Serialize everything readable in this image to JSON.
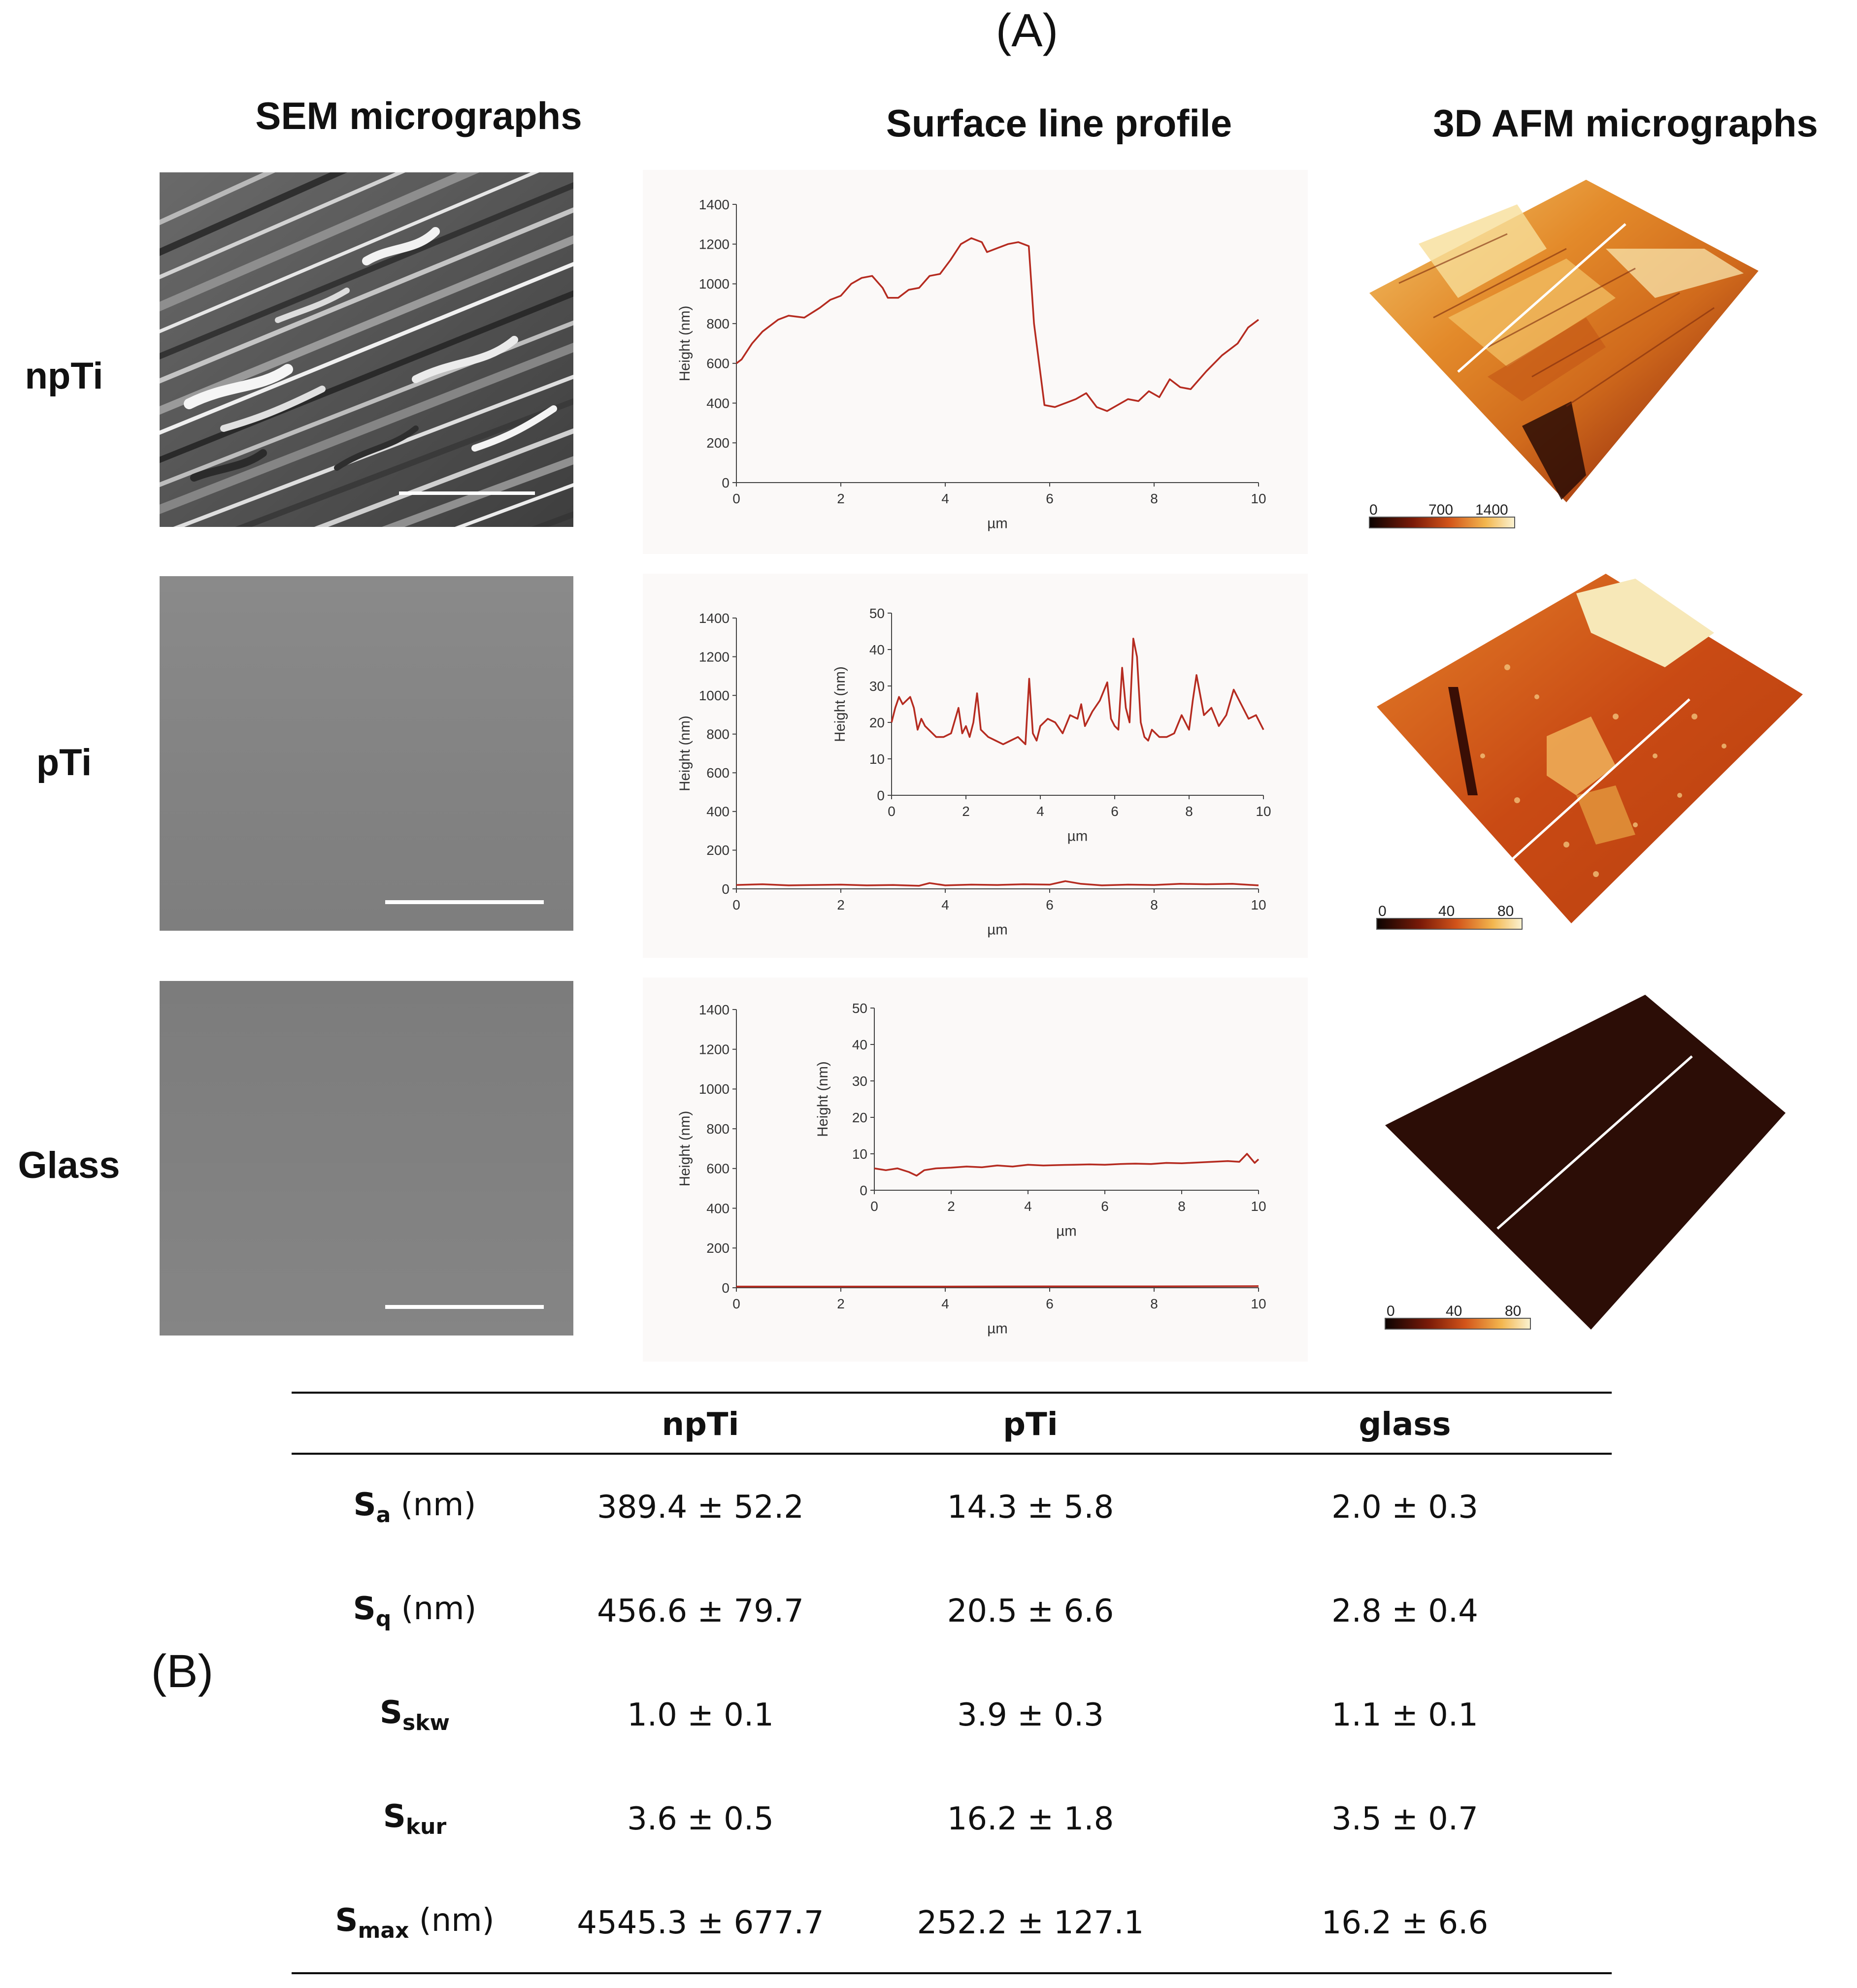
{
  "panel_a_label": "(A)",
  "panel_b_label": "(B)",
  "columns": {
    "sem": "SEM micrographs",
    "profile": "Surface line profile",
    "afm": "3D AFM micrographs"
  },
  "rows": {
    "npTi": "npTi",
    "pTi": "pTi",
    "glass": "Glass"
  },
  "colors": {
    "line": "#b52b20",
    "afm_dark": "#2a0c05",
    "afm_mid": "#c94a14",
    "afm_light": "#f7df9a"
  },
  "colorbars": [
    {
      "labels": [
        "0",
        "700",
        "1400"
      ]
    },
    {
      "labels": [
        "0",
        "40",
        "80"
      ]
    },
    {
      "labels": [
        "0",
        "40",
        "80"
      ]
    }
  ],
  "chart_data": [
    {
      "type": "line",
      "id": "npTi-main",
      "xlabel": "µm",
      "ylabel": "Height (nm)",
      "xlim": [
        0,
        10
      ],
      "ylim": [
        0,
        1400
      ],
      "xticks": [
        "0",
        "2",
        "4",
        "6",
        "8",
        "10"
      ],
      "yticks": [
        "0",
        "200",
        "400",
        "600",
        "800",
        "1000",
        "1200",
        "1400"
      ],
      "x": [
        0,
        0.1,
        0.3,
        0.5,
        0.8,
        1.0,
        1.3,
        1.6,
        1.8,
        2.0,
        2.2,
        2.4,
        2.6,
        2.8,
        2.9,
        3.1,
        3.3,
        3.5,
        3.7,
        3.9,
        4.1,
        4.3,
        4.5,
        4.7,
        4.8,
        5.0,
        5.2,
        5.4,
        5.6,
        5.7,
        5.9,
        6.1,
        6.3,
        6.5,
        6.7,
        6.9,
        7.1,
        7.3,
        7.5,
        7.7,
        7.9,
        8.1,
        8.3,
        8.5,
        8.7,
        9.0,
        9.3,
        9.6,
        9.8,
        10.0
      ],
      "y": [
        600,
        620,
        700,
        760,
        820,
        840,
        830,
        880,
        920,
        940,
        1000,
        1030,
        1040,
        980,
        930,
        930,
        970,
        980,
        1040,
        1050,
        1120,
        1200,
        1230,
        1210,
        1160,
        1180,
        1200,
        1210,
        1190,
        800,
        390,
        380,
        400,
        420,
        450,
        380,
        360,
        390,
        420,
        410,
        460,
        430,
        520,
        480,
        470,
        560,
        640,
        700,
        780,
        820
      ]
    },
    {
      "type": "line",
      "id": "pTi-main",
      "xlabel": "µm",
      "ylabel": "Height (nm)",
      "xlim": [
        0,
        10
      ],
      "ylim": [
        0,
        1400
      ],
      "xticks": [
        "0",
        "2",
        "4",
        "6",
        "8",
        "10"
      ],
      "yticks": [
        "0",
        "200",
        "400",
        "600",
        "800",
        "1000",
        "1200",
        "1400"
      ],
      "x": [
        0,
        0.5,
        1.0,
        1.5,
        2.0,
        2.5,
        3.0,
        3.5,
        3.7,
        4.0,
        4.5,
        5.0,
        5.5,
        6.0,
        6.3,
        6.6,
        7.0,
        7.5,
        8.0,
        8.5,
        9.0,
        9.5,
        10.0
      ],
      "y": [
        20,
        24,
        18,
        20,
        22,
        18,
        20,
        16,
        30,
        18,
        22,
        20,
        24,
        22,
        40,
        26,
        18,
        22,
        20,
        26,
        24,
        26,
        18
      ]
    },
    {
      "type": "line",
      "id": "pTi-inset",
      "xlabel": "µm",
      "ylabel": "Height (nm)",
      "xlim": [
        0,
        10
      ],
      "ylim": [
        0,
        50
      ],
      "xticks": [
        "0",
        "2",
        "4",
        "6",
        "8",
        "10"
      ],
      "yticks": [
        "0",
        "10",
        "20",
        "30",
        "40",
        "50"
      ],
      "x": [
        0,
        0.1,
        0.2,
        0.3,
        0.4,
        0.5,
        0.6,
        0.7,
        0.8,
        0.9,
        1.0,
        1.2,
        1.4,
        1.6,
        1.8,
        1.9,
        2.0,
        2.1,
        2.2,
        2.3,
        2.4,
        2.6,
        2.8,
        3.0,
        3.2,
        3.4,
        3.6,
        3.7,
        3.8,
        3.9,
        4.0,
        4.2,
        4.4,
        4.6,
        4.8,
        5.0,
        5.1,
        5.2,
        5.4,
        5.6,
        5.8,
        5.9,
        6.0,
        6.1,
        6.2,
        6.3,
        6.4,
        6.5,
        6.6,
        6.7,
        6.8,
        6.9,
        7.0,
        7.2,
        7.4,
        7.6,
        7.8,
        8.0,
        8.1,
        8.2,
        8.4,
        8.6,
        8.8,
        9.0,
        9.2,
        9.4,
        9.6,
        9.8,
        10.0
      ],
      "y": [
        20,
        24,
        27,
        25,
        26,
        27,
        24,
        18,
        21,
        19,
        18,
        16,
        16,
        17,
        24,
        17,
        19,
        16,
        20,
        28,
        18,
        16,
        15,
        14,
        15,
        16,
        14,
        32,
        17,
        15,
        19,
        21,
        20,
        17,
        22,
        21,
        25,
        19,
        23,
        26,
        31,
        21,
        19,
        18,
        35,
        24,
        20,
        43,
        38,
        20,
        16,
        15,
        18,
        16,
        16,
        17,
        22,
        18,
        26,
        33,
        22,
        24,
        19,
        22,
        29,
        25,
        21,
        22,
        18
      ]
    },
    {
      "type": "line",
      "id": "glass-main",
      "xlabel": "µm",
      "ylabel": "Height (nm)",
      "xlim": [
        0,
        10
      ],
      "ylim": [
        0,
        1400
      ],
      "xticks": [
        "0",
        "2",
        "4",
        "6",
        "8",
        "10"
      ],
      "yticks": [
        "0",
        "200",
        "400",
        "600",
        "800",
        "1000",
        "1200",
        "1400"
      ],
      "x": [
        0,
        2,
        4,
        6,
        8,
        10
      ],
      "y": [
        6,
        6,
        6,
        7,
        7,
        8
      ]
    },
    {
      "type": "line",
      "id": "glass-inset",
      "xlabel": "µm",
      "ylabel": "Height (nm)",
      "xlim": [
        0,
        10
      ],
      "ylim": [
        0,
        50
      ],
      "xticks": [
        "0",
        "2",
        "4",
        "6",
        "8",
        "10"
      ],
      "yticks": [
        "0",
        "10",
        "20",
        "30",
        "40",
        "50"
      ],
      "x": [
        0,
        0.3,
        0.6,
        0.9,
        1.1,
        1.3,
        1.6,
        2.0,
        2.4,
        2.8,
        3.2,
        3.6,
        4.0,
        4.4,
        4.8,
        5.2,
        5.6,
        6.0,
        6.4,
        6.8,
        7.2,
        7.6,
        8.0,
        8.4,
        8.8,
        9.2,
        9.5,
        9.7,
        9.9,
        10.0
      ],
      "y": [
        6,
        5.5,
        6,
        5,
        4,
        5.5,
        6,
        6.2,
        6.5,
        6.3,
        6.8,
        6.5,
        7,
        6.8,
        6.9,
        7,
        7.1,
        7,
        7.2,
        7.3,
        7.2,
        7.5,
        7.4,
        7.6,
        7.8,
        8,
        7.8,
        10,
        7.5,
        8.5
      ]
    }
  ],
  "table": {
    "headers": [
      "",
      "npTi",
      "pTi",
      "glass"
    ],
    "rows": [
      {
        "symbol": "S",
        "sub": "a",
        "unit": " (nm)",
        "values": [
          "389.4 ± 52.2",
          "14.3 ± 5.8",
          "2.0 ± 0.3"
        ]
      },
      {
        "symbol": "S",
        "sub": "q",
        "unit": " (nm)",
        "values": [
          "456.6 ± 79.7",
          "20.5 ± 6.6",
          "2.8 ± 0.4"
        ]
      },
      {
        "symbol": "S",
        "sub": "skw",
        "unit": "",
        "values": [
          "1.0 ± 0.1",
          "3.9 ± 0.3",
          "1.1 ± 0.1"
        ]
      },
      {
        "symbol": "S",
        "sub": "kur",
        "unit": "",
        "values": [
          "3.6 ± 0.5",
          "16.2 ± 1.8",
          "3.5 ± 0.7"
        ]
      },
      {
        "symbol": "S",
        "sub": "max",
        "unit": " (nm)",
        "values": [
          "4545.3 ± 677.7",
          "252.2 ± 127.1",
          "16.2 ± 6.6"
        ]
      }
    ]
  }
}
